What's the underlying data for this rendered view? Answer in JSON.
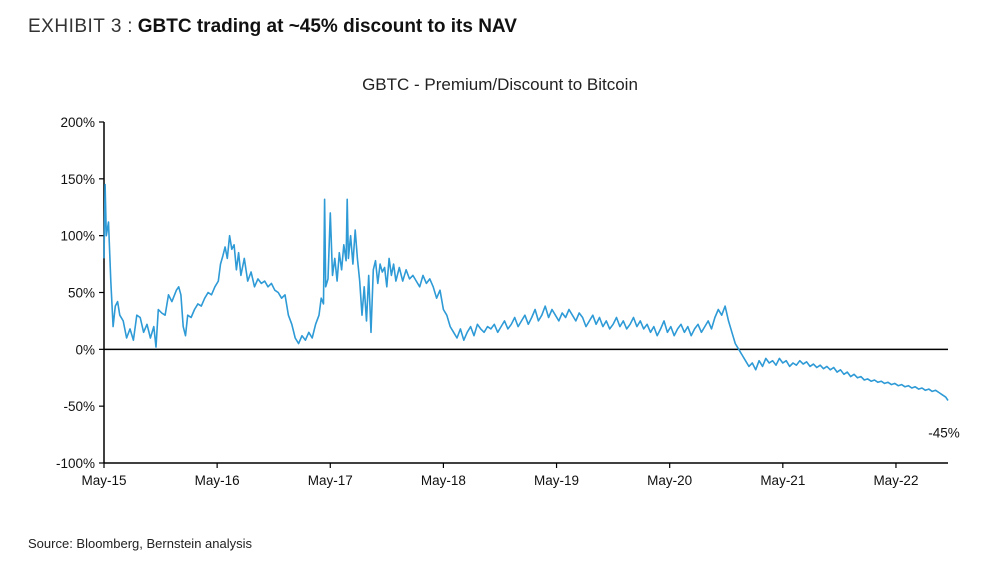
{
  "header": {
    "exhibit_label": "EXHIBIT 3",
    "separator": ":",
    "headline": "GBTC trading at ~45% discount to its NAV"
  },
  "footer": {
    "source": "Source: Bloomberg, Bernstein analysis"
  },
  "chart_data": {
    "type": "line",
    "title": "GBTC - Premium/Discount to Bitcoin",
    "xlabel": "",
    "ylabel": "",
    "ylim": [
      -100,
      200
    ],
    "y_ticks": [
      -100,
      -50,
      0,
      50,
      100,
      150,
      200
    ],
    "y_tick_labels": [
      "-100%",
      "-50%",
      "0%",
      "50%",
      "100%",
      "150%",
      "200%"
    ],
    "x_range_years": [
      2015.36,
      2022.82
    ],
    "x_ticks": [
      {
        "label": "May-15",
        "value": 2015.36
      },
      {
        "label": "May-16",
        "value": 2016.36
      },
      {
        "label": "May-17",
        "value": 2017.36
      },
      {
        "label": "May-18",
        "value": 2018.36
      },
      {
        "label": "May-19",
        "value": 2019.36
      },
      {
        "label": "May-20",
        "value": 2020.36
      },
      {
        "label": "May-21",
        "value": 2021.36
      },
      {
        "label": "May-22",
        "value": 2022.36
      }
    ],
    "series": [
      {
        "name": "GBTC Premium/Discount",
        "color": "#2e9ad6",
        "points": [
          [
            2015.36,
            80
          ],
          [
            2015.37,
            145
          ],
          [
            2015.38,
            100
          ],
          [
            2015.4,
            112
          ],
          [
            2015.42,
            60
          ],
          [
            2015.44,
            20
          ],
          [
            2015.46,
            38
          ],
          [
            2015.48,
            42
          ],
          [
            2015.5,
            30
          ],
          [
            2015.53,
            25
          ],
          [
            2015.56,
            10
          ],
          [
            2015.59,
            18
          ],
          [
            2015.62,
            8
          ],
          [
            2015.65,
            30
          ],
          [
            2015.68,
            28
          ],
          [
            2015.71,
            15
          ],
          [
            2015.74,
            22
          ],
          [
            2015.77,
            10
          ],
          [
            2015.8,
            20
          ],
          [
            2015.82,
            2
          ],
          [
            2015.84,
            35
          ],
          [
            2015.87,
            32
          ],
          [
            2015.9,
            30
          ],
          [
            2015.93,
            48
          ],
          [
            2015.96,
            42
          ],
          [
            2016.0,
            52
          ],
          [
            2016.02,
            55
          ],
          [
            2016.04,
            48
          ],
          [
            2016.06,
            20
          ],
          [
            2016.08,
            12
          ],
          [
            2016.1,
            30
          ],
          [
            2016.13,
            28
          ],
          [
            2016.16,
            35
          ],
          [
            2016.19,
            40
          ],
          [
            2016.22,
            38
          ],
          [
            2016.25,
            45
          ],
          [
            2016.28,
            50
          ],
          [
            2016.31,
            48
          ],
          [
            2016.34,
            55
          ],
          [
            2016.37,
            60
          ],
          [
            2016.39,
            75
          ],
          [
            2016.41,
            82
          ],
          [
            2016.43,
            90
          ],
          [
            2016.45,
            80
          ],
          [
            2016.47,
            100
          ],
          [
            2016.49,
            88
          ],
          [
            2016.51,
            92
          ],
          [
            2016.53,
            70
          ],
          [
            2016.55,
            85
          ],
          [
            2016.57,
            65
          ],
          [
            2016.6,
            80
          ],
          [
            2016.63,
            60
          ],
          [
            2016.66,
            68
          ],
          [
            2016.69,
            55
          ],
          [
            2016.72,
            62
          ],
          [
            2016.75,
            58
          ],
          [
            2016.78,
            60
          ],
          [
            2016.81,
            55
          ],
          [
            2016.84,
            58
          ],
          [
            2016.87,
            52
          ],
          [
            2016.9,
            50
          ],
          [
            2016.93,
            45
          ],
          [
            2016.96,
            48
          ],
          [
            2016.99,
            30
          ],
          [
            2017.02,
            22
          ],
          [
            2017.05,
            10
          ],
          [
            2017.08,
            5
          ],
          [
            2017.11,
            12
          ],
          [
            2017.14,
            8
          ],
          [
            2017.17,
            15
          ],
          [
            2017.2,
            10
          ],
          [
            2017.23,
            22
          ],
          [
            2017.26,
            30
          ],
          [
            2017.28,
            45
          ],
          [
            2017.3,
            40
          ],
          [
            2017.31,
            132
          ],
          [
            2017.32,
            55
          ],
          [
            2017.34,
            62
          ],
          [
            2017.36,
            120
          ],
          [
            2017.38,
            65
          ],
          [
            2017.4,
            80
          ],
          [
            2017.42,
            60
          ],
          [
            2017.44,
            85
          ],
          [
            2017.46,
            70
          ],
          [
            2017.48,
            92
          ],
          [
            2017.5,
            78
          ],
          [
            2017.51,
            132
          ],
          [
            2017.52,
            80
          ],
          [
            2017.54,
            100
          ],
          [
            2017.56,
            75
          ],
          [
            2017.58,
            105
          ],
          [
            2017.6,
            80
          ],
          [
            2017.62,
            60
          ],
          [
            2017.64,
            30
          ],
          [
            2017.66,
            55
          ],
          [
            2017.68,
            25
          ],
          [
            2017.7,
            65
          ],
          [
            2017.72,
            15
          ],
          [
            2017.74,
            70
          ],
          [
            2017.76,
            78
          ],
          [
            2017.78,
            58
          ],
          [
            2017.8,
            75
          ],
          [
            2017.82,
            68
          ],
          [
            2017.84,
            72
          ],
          [
            2017.86,
            55
          ],
          [
            2017.88,
            80
          ],
          [
            2017.9,
            65
          ],
          [
            2017.92,
            75
          ],
          [
            2017.94,
            60
          ],
          [
            2017.97,
            72
          ],
          [
            2018.0,
            60
          ],
          [
            2018.03,
            70
          ],
          [
            2018.06,
            62
          ],
          [
            2018.09,
            65
          ],
          [
            2018.12,
            60
          ],
          [
            2018.15,
            55
          ],
          [
            2018.18,
            65
          ],
          [
            2018.21,
            58
          ],
          [
            2018.24,
            62
          ],
          [
            2018.27,
            55
          ],
          [
            2018.3,
            45
          ],
          [
            2018.33,
            52
          ],
          [
            2018.36,
            35
          ],
          [
            2018.39,
            30
          ],
          [
            2018.42,
            20
          ],
          [
            2018.45,
            15
          ],
          [
            2018.48,
            10
          ],
          [
            2018.51,
            18
          ],
          [
            2018.54,
            8
          ],
          [
            2018.57,
            15
          ],
          [
            2018.6,
            20
          ],
          [
            2018.63,
            12
          ],
          [
            2018.66,
            22
          ],
          [
            2018.69,
            18
          ],
          [
            2018.72,
            15
          ],
          [
            2018.75,
            20
          ],
          [
            2018.78,
            18
          ],
          [
            2018.81,
            22
          ],
          [
            2018.84,
            15
          ],
          [
            2018.87,
            20
          ],
          [
            2018.9,
            25
          ],
          [
            2018.93,
            18
          ],
          [
            2018.96,
            22
          ],
          [
            2018.99,
            28
          ],
          [
            2019.02,
            20
          ],
          [
            2019.05,
            25
          ],
          [
            2019.08,
            30
          ],
          [
            2019.11,
            22
          ],
          [
            2019.14,
            28
          ],
          [
            2019.17,
            35
          ],
          [
            2019.2,
            25
          ],
          [
            2019.23,
            30
          ],
          [
            2019.26,
            38
          ],
          [
            2019.29,
            28
          ],
          [
            2019.32,
            35
          ],
          [
            2019.35,
            30
          ],
          [
            2019.38,
            25
          ],
          [
            2019.41,
            32
          ],
          [
            2019.44,
            28
          ],
          [
            2019.47,
            35
          ],
          [
            2019.5,
            30
          ],
          [
            2019.53,
            25
          ],
          [
            2019.56,
            32
          ],
          [
            2019.59,
            28
          ],
          [
            2019.62,
            20
          ],
          [
            2019.65,
            25
          ],
          [
            2019.68,
            30
          ],
          [
            2019.71,
            22
          ],
          [
            2019.74,
            28
          ],
          [
            2019.77,
            20
          ],
          [
            2019.8,
            25
          ],
          [
            2019.83,
            18
          ],
          [
            2019.86,
            22
          ],
          [
            2019.89,
            28
          ],
          [
            2019.92,
            20
          ],
          [
            2019.95,
            25
          ],
          [
            2019.98,
            18
          ],
          [
            2020.01,
            22
          ],
          [
            2020.04,
            28
          ],
          [
            2020.07,
            20
          ],
          [
            2020.1,
            25
          ],
          [
            2020.13,
            18
          ],
          [
            2020.16,
            22
          ],
          [
            2020.19,
            15
          ],
          [
            2020.22,
            20
          ],
          [
            2020.25,
            12
          ],
          [
            2020.28,
            18
          ],
          [
            2020.31,
            25
          ],
          [
            2020.34,
            15
          ],
          [
            2020.37,
            20
          ],
          [
            2020.4,
            12
          ],
          [
            2020.43,
            18
          ],
          [
            2020.46,
            22
          ],
          [
            2020.49,
            15
          ],
          [
            2020.52,
            20
          ],
          [
            2020.55,
            12
          ],
          [
            2020.58,
            18
          ],
          [
            2020.61,
            22
          ],
          [
            2020.64,
            15
          ],
          [
            2020.67,
            20
          ],
          [
            2020.7,
            25
          ],
          [
            2020.73,
            18
          ],
          [
            2020.76,
            28
          ],
          [
            2020.79,
            35
          ],
          [
            2020.82,
            30
          ],
          [
            2020.85,
            38
          ],
          [
            2020.88,
            25
          ],
          [
            2020.91,
            15
          ],
          [
            2020.94,
            5
          ],
          [
            2020.97,
            0
          ],
          [
            2021.0,
            -5
          ],
          [
            2021.03,
            -10
          ],
          [
            2021.06,
            -15
          ],
          [
            2021.09,
            -12
          ],
          [
            2021.12,
            -18
          ],
          [
            2021.15,
            -10
          ],
          [
            2021.18,
            -15
          ],
          [
            2021.21,
            -8
          ],
          [
            2021.24,
            -12
          ],
          [
            2021.27,
            -10
          ],
          [
            2021.3,
            -14
          ],
          [
            2021.33,
            -8
          ],
          [
            2021.36,
            -12
          ],
          [
            2021.39,
            -10
          ],
          [
            2021.42,
            -15
          ],
          [
            2021.45,
            -12
          ],
          [
            2021.48,
            -14
          ],
          [
            2021.51,
            -10
          ],
          [
            2021.54,
            -13
          ],
          [
            2021.57,
            -11
          ],
          [
            2021.6,
            -15
          ],
          [
            2021.63,
            -13
          ],
          [
            2021.66,
            -16
          ],
          [
            2021.69,
            -14
          ],
          [
            2021.72,
            -17
          ],
          [
            2021.75,
            -15
          ],
          [
            2021.78,
            -18
          ],
          [
            2021.81,
            -16
          ],
          [
            2021.84,
            -20
          ],
          [
            2021.87,
            -18
          ],
          [
            2021.9,
            -22
          ],
          [
            2021.93,
            -20
          ],
          [
            2021.96,
            -24
          ],
          [
            2021.99,
            -22
          ],
          [
            2022.02,
            -25
          ],
          [
            2022.05,
            -24
          ],
          [
            2022.08,
            -27
          ],
          [
            2022.11,
            -26
          ],
          [
            2022.14,
            -28
          ],
          [
            2022.17,
            -27
          ],
          [
            2022.2,
            -29
          ],
          [
            2022.23,
            -28
          ],
          [
            2022.26,
            -30
          ],
          [
            2022.29,
            -29
          ],
          [
            2022.32,
            -31
          ],
          [
            2022.35,
            -30
          ],
          [
            2022.38,
            -32
          ],
          [
            2022.41,
            -31
          ],
          [
            2022.44,
            -33
          ],
          [
            2022.47,
            -32
          ],
          [
            2022.5,
            -34
          ],
          [
            2022.53,
            -33
          ],
          [
            2022.56,
            -35
          ],
          [
            2022.59,
            -34
          ],
          [
            2022.62,
            -36
          ],
          [
            2022.65,
            -35
          ],
          [
            2022.68,
            -37
          ],
          [
            2022.71,
            -36
          ],
          [
            2022.74,
            -38
          ],
          [
            2022.77,
            -40
          ],
          [
            2022.8,
            -42
          ],
          [
            2022.82,
            -45
          ]
        ]
      }
    ],
    "annotations": [
      {
        "text": "-45%",
        "x": 2022.82,
        "y": -45
      }
    ]
  }
}
